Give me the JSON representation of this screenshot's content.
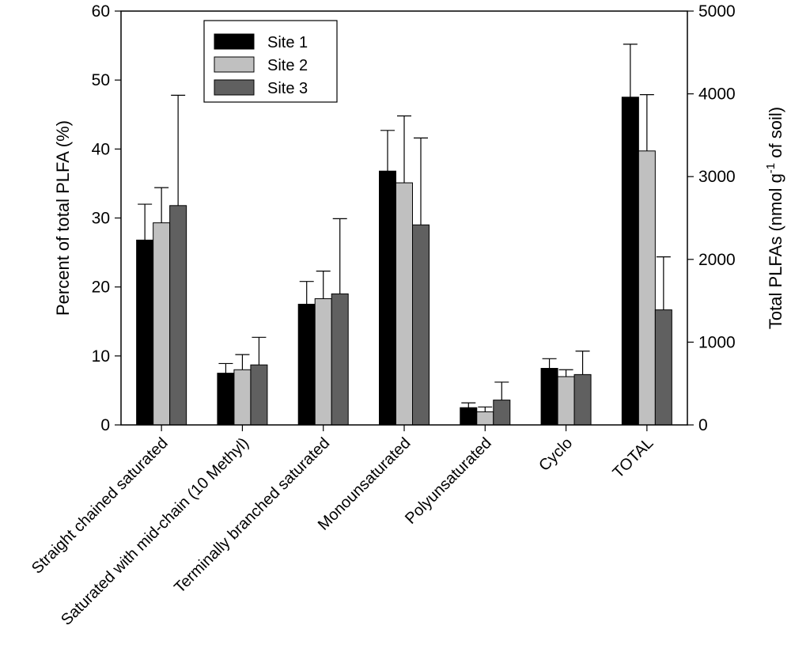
{
  "chart_data": {
    "type": "bar",
    "title": "",
    "xlabel": "",
    "ylabel": "Percent of total PLFA (%)",
    "y2label": {
      "prefix": "Total PLFAs (nmol g",
      "superscript": "-1",
      "suffix": " of soil)"
    },
    "ylim": [
      0,
      60
    ],
    "y2lim": [
      0,
      5000
    ],
    "yticks": [
      0,
      10,
      20,
      30,
      40,
      50,
      60
    ],
    "y2ticks": [
      0,
      1000,
      2000,
      3000,
      4000,
      5000
    ],
    "legend_position": "top-left",
    "categories": [
      "Straight chained saturated",
      "Saturated with mid-chain (10 Methyl)",
      "Terminally branched saturated",
      "Monounsaturated",
      "Polyunsaturated",
      "Cyclo",
      "TOTAL"
    ],
    "secondary_axis_categories": [
      "TOTAL"
    ],
    "series": [
      {
        "name": "Site 1",
        "color": "#000000",
        "values": [
          26.8,
          7.5,
          17.5,
          36.8,
          2.5,
          8.2,
          3960
        ],
        "errors": [
          5.2,
          1.4,
          3.3,
          5.9,
          0.7,
          1.4,
          640
        ]
      },
      {
        "name": "Site 2",
        "color": "#c0c0c0",
        "values": [
          29.3,
          8.0,
          18.3,
          35.1,
          1.9,
          7.0,
          3310
        ],
        "errors": [
          5.1,
          2.2,
          4.0,
          9.7,
          0.7,
          1.0,
          680
        ]
      },
      {
        "name": "Site 3",
        "color": "#606060",
        "values": [
          31.8,
          8.7,
          19.0,
          29.0,
          3.6,
          7.3,
          1390
        ],
        "errors": [
          16.0,
          4.0,
          10.9,
          12.6,
          2.6,
          3.4,
          640
        ]
      }
    ]
  }
}
